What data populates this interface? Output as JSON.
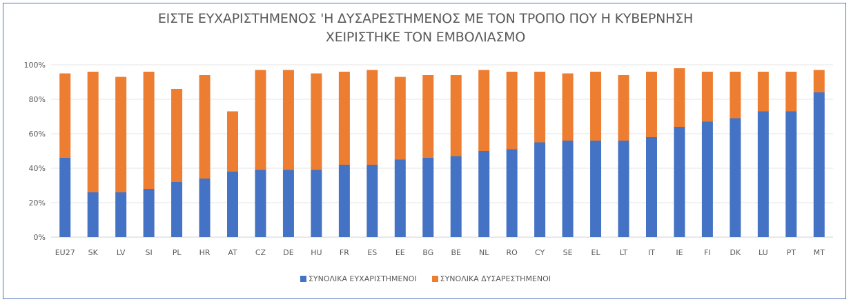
{
  "chart_data": {
    "type": "bar",
    "stacked": true,
    "title": [
      "ΕΙΣΤΕ ΕΥΧΑΡΙΣΤΗΜΕΝΟΣ 'Η ΔΥΣΑΡΕΣΤΗΜΕΝΟΣ ΜΕ ΤΟΝ ΤΡΟΠΟ ΠΟΥ Η ΚΥΒΕΡΝΗΣΗ",
      "ΧΕΙΡΙΣΤΗΚΕ ΤΟΝ ΕΜΒΟΛΙΑΣΜΟ"
    ],
    "xlabel": "",
    "ylabel": "",
    "ylim": [
      0,
      100
    ],
    "yticks": [
      "0%",
      "20%",
      "40%",
      "60%",
      "80%",
      "100%"
    ],
    "grid": true,
    "legend_position": "bottom",
    "categories": [
      "EU27",
      "SK",
      "LV",
      "SI",
      "PL",
      "HR",
      "AT",
      "CZ",
      "DE",
      "HU",
      "FR",
      "ES",
      "EE",
      "BG",
      "BE",
      "NL",
      "RO",
      "CY",
      "SE",
      "EL",
      "LT",
      "IT",
      "IE",
      "FI",
      "DK",
      "LU",
      "PT",
      "MT"
    ],
    "series": [
      {
        "name": "ΣΥΝΟΛΙΚΑ ΕΥΧΑΡΙΣΤΗΜΕΝΟΙ",
        "color": "#4472c4",
        "values": [
          46,
          26,
          26,
          28,
          32,
          34,
          38,
          39,
          39,
          39,
          42,
          42,
          45,
          46,
          47,
          50,
          51,
          55,
          56,
          56,
          56,
          58,
          64,
          67,
          69,
          73,
          73,
          84
        ]
      },
      {
        "name": "ΣΥΝΟΛΙΚΑ ΔΥΣΑΡΕΣΤΗΜΕΝΟΙ",
        "color": "#ed7d31",
        "values": [
          49,
          70,
          67,
          68,
          54,
          60,
          35,
          58,
          58,
          56,
          54,
          55,
          48,
          48,
          47,
          47,
          45,
          41,
          39,
          40,
          38,
          38,
          34,
          29,
          27,
          23,
          23,
          13
        ]
      }
    ]
  }
}
